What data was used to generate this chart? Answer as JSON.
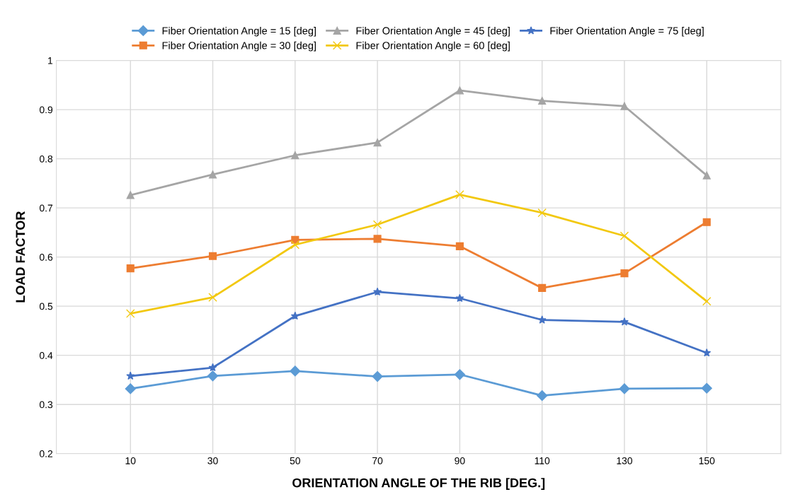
{
  "chart_data": {
    "type": "line",
    "xlabel": "ORIENTATION ANGLE OF THE RIB [DEG.]",
    "ylabel": "LOAD FACTOR",
    "categories": [
      "10",
      "30",
      "50",
      "70",
      "90",
      "110",
      "130",
      "150"
    ],
    "ylim": [
      0.2,
      1
    ],
    "yticks": [
      0.2,
      0.3,
      0.4,
      0.5,
      0.6,
      0.7,
      0.8,
      0.9,
      1
    ],
    "grid": true,
    "legend": "top",
    "series": [
      {
        "name": "Fiber Orientation Angle = 15 [deg]",
        "color": "#5b9bd5",
        "marker": "diamond",
        "values": [
          0.332,
          0.358,
          0.368,
          0.357,
          0.361,
          0.318,
          0.332,
          0.333
        ]
      },
      {
        "name": "Fiber Orientation Angle = 30 [deg]",
        "color": "#ed7d31",
        "marker": "square",
        "values": [
          0.577,
          0.602,
          0.635,
          0.637,
          0.622,
          0.537,
          0.567,
          0.671
        ]
      },
      {
        "name": "Fiber Orientation Angle = 45 [deg]",
        "color": "#a5a5a5",
        "marker": "triangle",
        "values": [
          0.726,
          0.768,
          0.807,
          0.833,
          0.939,
          0.918,
          0.907,
          0.766
        ]
      },
      {
        "name": "Fiber Orientation Angle = 60 [deg]",
        "color": "#f2c80f",
        "marker": "cross",
        "values": [
          0.485,
          0.518,
          0.625,
          0.666,
          0.727,
          0.69,
          0.643,
          0.51
        ]
      },
      {
        "name": "Fiber Orientation Angle = 75 [deg]",
        "color": "#4472c4",
        "marker": "star",
        "values": [
          0.358,
          0.375,
          0.48,
          0.529,
          0.516,
          0.472,
          0.468,
          0.405
        ]
      }
    ]
  }
}
